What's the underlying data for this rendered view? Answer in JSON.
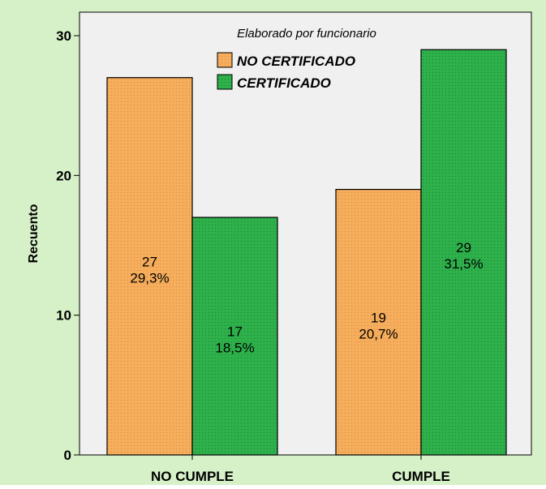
{
  "colors": {
    "frame": "#d6f0c8",
    "plot_bg": "#f0f0f0",
    "series_1": "#f6ad5c",
    "series_2": "#2eb14b"
  },
  "chart_data": {
    "type": "bar",
    "ylabel": "Recuento",
    "legend_title": "Elaborado por funcionario",
    "legend_position": "top-right",
    "categories": [
      "NO CUMPLE",
      "CUMPLE"
    ],
    "series": [
      {
        "name": "NO CERTIFICADO",
        "values": [
          27,
          19
        ],
        "labels": [
          "29,3%",
          "20,7%"
        ]
      },
      {
        "name": "CERTIFICADO",
        "values": [
          17,
          29
        ],
        "labels": [
          "18,5%",
          "31,5%"
        ]
      }
    ],
    "ylim": [
      0,
      30
    ],
    "yticks": [
      0,
      10,
      20,
      30
    ],
    "grid": false
  }
}
